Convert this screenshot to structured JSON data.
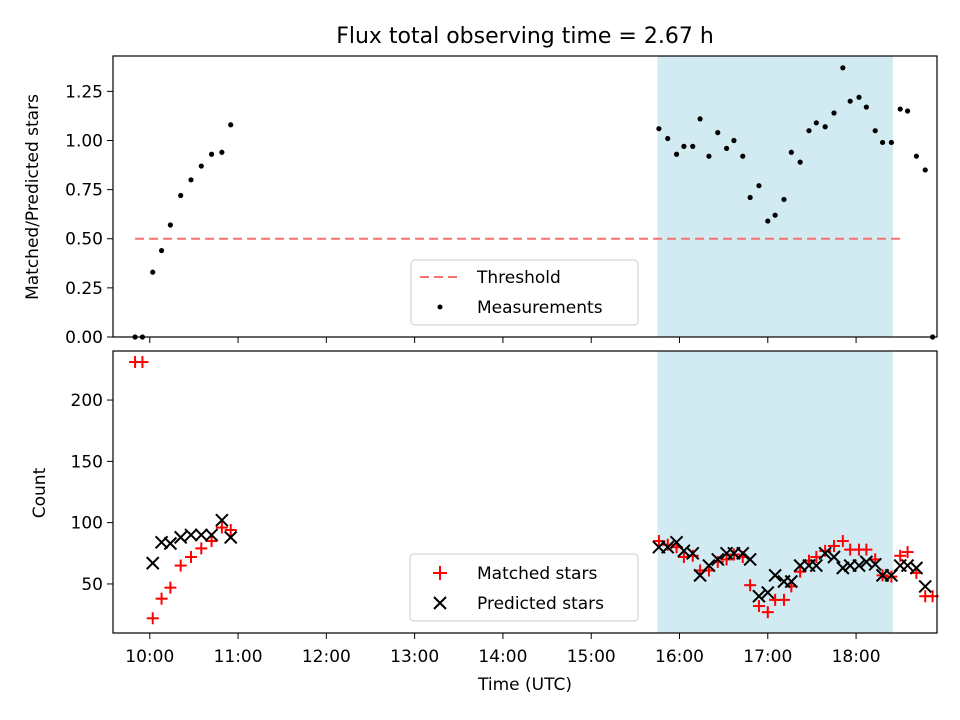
{
  "chart_data": [
    {
      "type": "scatter",
      "title": "Flux total observing time = 2.67 h",
      "xlabel": "",
      "ylabel": "Matched/Predicted stars",
      "ylim": [
        0,
        1.43
      ],
      "xlim": [
        "09:35",
        "18:55"
      ],
      "yticks": [
        "0.00",
        "0.25",
        "0.50",
        "0.75",
        "1.00",
        "1.25"
      ],
      "shaded_region": {
        "from": "15:45",
        "to": "18:25",
        "color": "#add8e6"
      },
      "threshold": {
        "name": "Threshold",
        "value": 0.5,
        "from": "09:50",
        "to": "18:30",
        "color": "#f87171"
      },
      "legend": {
        "position": "lower-center",
        "entries": [
          "Threshold",
          "Measurements"
        ]
      },
      "series": [
        {
          "name": "Measurements",
          "marker": "dot",
          "color": "#000000",
          "points": [
            [
              "09:50",
              0.0
            ],
            [
              "09:55",
              0.0
            ],
            [
              "10:02",
              0.33
            ],
            [
              "10:08",
              0.44
            ],
            [
              "10:14",
              0.57
            ],
            [
              "10:21",
              0.72
            ],
            [
              "10:28",
              0.8
            ],
            [
              "10:35",
              0.87
            ],
            [
              "10:42",
              0.93
            ],
            [
              "10:49",
              0.94
            ],
            [
              "10:55",
              1.08
            ],
            [
              "15:46",
              1.06
            ],
            [
              "15:52",
              1.01
            ],
            [
              "15:58",
              0.93
            ],
            [
              "16:03",
              0.97
            ],
            [
              "16:09",
              0.97
            ],
            [
              "16:14",
              1.11
            ],
            [
              "16:20",
              0.92
            ],
            [
              "16:26",
              1.04
            ],
            [
              "16:32",
              0.96
            ],
            [
              "16:37",
              1.0
            ],
            [
              "16:43",
              0.92
            ],
            [
              "16:48",
              0.71
            ],
            [
              "16:54",
              0.77
            ],
            [
              "17:00",
              0.59
            ],
            [
              "17:05",
              0.62
            ],
            [
              "17:11",
              0.7
            ],
            [
              "17:16",
              0.94
            ],
            [
              "17:22",
              0.89
            ],
            [
              "17:28",
              1.05
            ],
            [
              "17:33",
              1.09
            ],
            [
              "17:39",
              1.07
            ],
            [
              "17:45",
              1.14
            ],
            [
              "17:51",
              1.37
            ],
            [
              "17:56",
              1.2
            ],
            [
              "18:02",
              1.22
            ],
            [
              "18:07",
              1.17
            ],
            [
              "18:13",
              1.05
            ],
            [
              "18:18",
              0.99
            ],
            [
              "18:24",
              0.99
            ],
            [
              "18:30",
              1.16
            ],
            [
              "18:35",
              1.15
            ],
            [
              "18:41",
              0.92
            ],
            [
              "18:47",
              0.85
            ],
            [
              "18:52",
              0.0
            ]
          ]
        }
      ]
    },
    {
      "type": "scatter",
      "title": "",
      "xlabel": "Time (UTC)",
      "ylabel": "Count",
      "ylim": [
        10,
        240
      ],
      "xlim": [
        "09:35",
        "18:55"
      ],
      "xticks": [
        "10:00",
        "11:00",
        "12:00",
        "13:00",
        "14:00",
        "15:00",
        "16:00",
        "17:00",
        "18:00"
      ],
      "yticks": [
        "50",
        "100",
        "150",
        "200"
      ],
      "shaded_region": {
        "from": "15:45",
        "to": "18:25",
        "color": "#add8e6"
      },
      "legend": {
        "position": "lower-center",
        "entries": [
          "Matched stars",
          "Predicted stars"
        ]
      },
      "series": [
        {
          "name": "Matched stars",
          "marker": "plus",
          "color": "#ff0000",
          "points": [
            [
              "09:50",
              231
            ],
            [
              "09:55",
              231
            ],
            [
              "10:02",
              22
            ],
            [
              "10:08",
              38
            ],
            [
              "10:14",
              47
            ],
            [
              "10:21",
              65
            ],
            [
              "10:28",
              72
            ],
            [
              "10:35",
              79
            ],
            [
              "10:42",
              85
            ],
            [
              "10:49",
              96
            ],
            [
              "10:55",
              94
            ],
            [
              "15:46",
              85
            ],
            [
              "15:52",
              82
            ],
            [
              "15:58",
              80
            ],
            [
              "16:03",
              72
            ],
            [
              "16:09",
              73
            ],
            [
              "16:14",
              61
            ],
            [
              "16:20",
              61
            ],
            [
              "16:26",
              68
            ],
            [
              "16:32",
              70
            ],
            [
              "16:37",
              74
            ],
            [
              "16:43",
              72
            ],
            [
              "16:48",
              49
            ],
            [
              "16:54",
              32
            ],
            [
              "17:00",
              27
            ],
            [
              "17:05",
              37
            ],
            [
              "17:11",
              37
            ],
            [
              "17:16",
              48
            ],
            [
              "17:22",
              60
            ],
            [
              "17:28",
              69
            ],
            [
              "17:33",
              72
            ],
            [
              "17:39",
              77
            ],
            [
              "17:45",
              81
            ],
            [
              "17:51",
              85
            ],
            [
              "17:56",
              78
            ],
            [
              "18:02",
              78
            ],
            [
              "18:07",
              78
            ],
            [
              "18:13",
              70
            ],
            [
              "18:18",
              57
            ],
            [
              "18:24",
              56
            ],
            [
              "18:30",
              73
            ],
            [
              "18:35",
              76
            ],
            [
              "18:41",
              59
            ],
            [
              "18:47",
              40
            ],
            [
              "18:52",
              40
            ]
          ]
        },
        {
          "name": "Predicted stars",
          "marker": "x",
          "color": "#000000",
          "points": [
            [
              "10:02",
              67
            ],
            [
              "10:08",
              84
            ],
            [
              "10:14",
              83
            ],
            [
              "10:21",
              88
            ],
            [
              "10:28",
              90
            ],
            [
              "10:35",
              90
            ],
            [
              "10:42",
              90
            ],
            [
              "10:49",
              102
            ],
            [
              "10:55",
              88
            ],
            [
              "15:46",
              80
            ],
            [
              "15:52",
              80
            ],
            [
              "15:58",
              84
            ],
            [
              "16:03",
              77
            ],
            [
              "16:09",
              75
            ],
            [
              "16:14",
              57
            ],
            [
              "16:20",
              65
            ],
            [
              "16:26",
              70
            ],
            [
              "16:32",
              75
            ],
            [
              "16:37",
              75
            ],
            [
              "16:43",
              75
            ],
            [
              "16:48",
              70
            ],
            [
              "16:54",
              40
            ],
            [
              "17:00",
              43
            ],
            [
              "17:05",
              57
            ],
            [
              "17:11",
              52
            ],
            [
              "17:16",
              52
            ],
            [
              "17:22",
              65
            ],
            [
              "17:28",
              65
            ],
            [
              "17:33",
              65
            ],
            [
              "17:39",
              75
            ],
            [
              "17:45",
              72
            ],
            [
              "17:51",
              63
            ],
            [
              "17:56",
              65
            ],
            [
              "18:02",
              65
            ],
            [
              "18:07",
              68
            ],
            [
              "18:13",
              66
            ],
            [
              "18:18",
              57
            ],
            [
              "18:24",
              57
            ],
            [
              "18:30",
              65
            ],
            [
              "18:35",
              65
            ],
            [
              "18:41",
              63
            ],
            [
              "18:47",
              48
            ]
          ]
        }
      ]
    }
  ]
}
